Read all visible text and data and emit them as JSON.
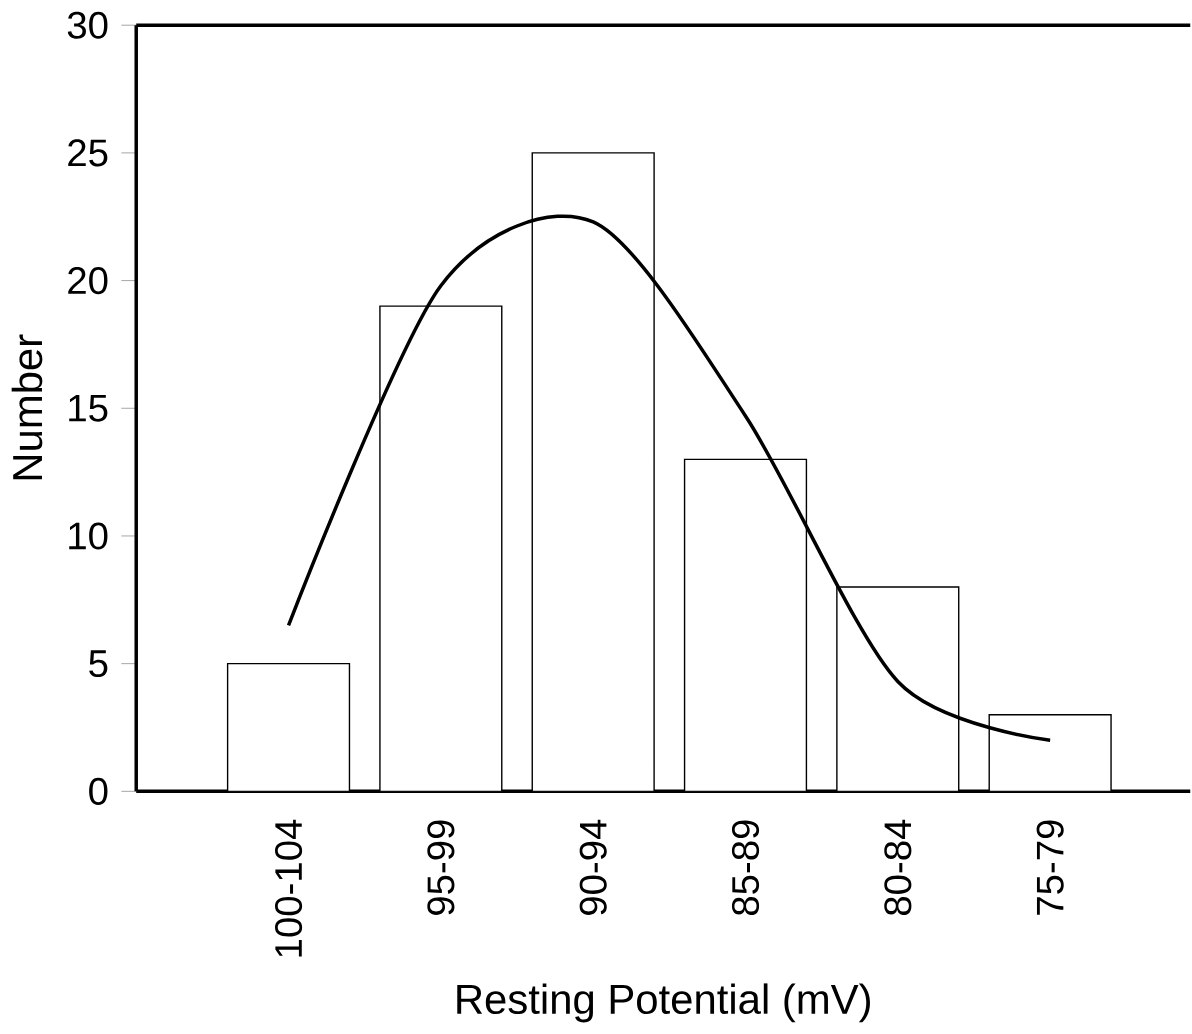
{
  "chart_data": {
    "type": "bar",
    "xlabel": "Resting Potential (mV)",
    "ylabel": "Number",
    "categories": [
      "100-104",
      "95-99",
      "90-94",
      "85-89",
      "80-84",
      "75-79"
    ],
    "ylim": [
      0,
      30
    ],
    "yticks": [
      0,
      5,
      10,
      15,
      20,
      25,
      30
    ],
    "grid": false,
    "series": [
      {
        "color": "#ffffff",
        "values": [
          5,
          19,
          25,
          13,
          8,
          3
        ]
      },
      {
        "type": "line",
        "color": "#000000",
        "marker": "none",
        "line_style": "solid",
        "values": [
          6.5,
          19.8,
          22.3,
          14.7,
          4.3,
          2.0
        ]
      }
    ]
  }
}
